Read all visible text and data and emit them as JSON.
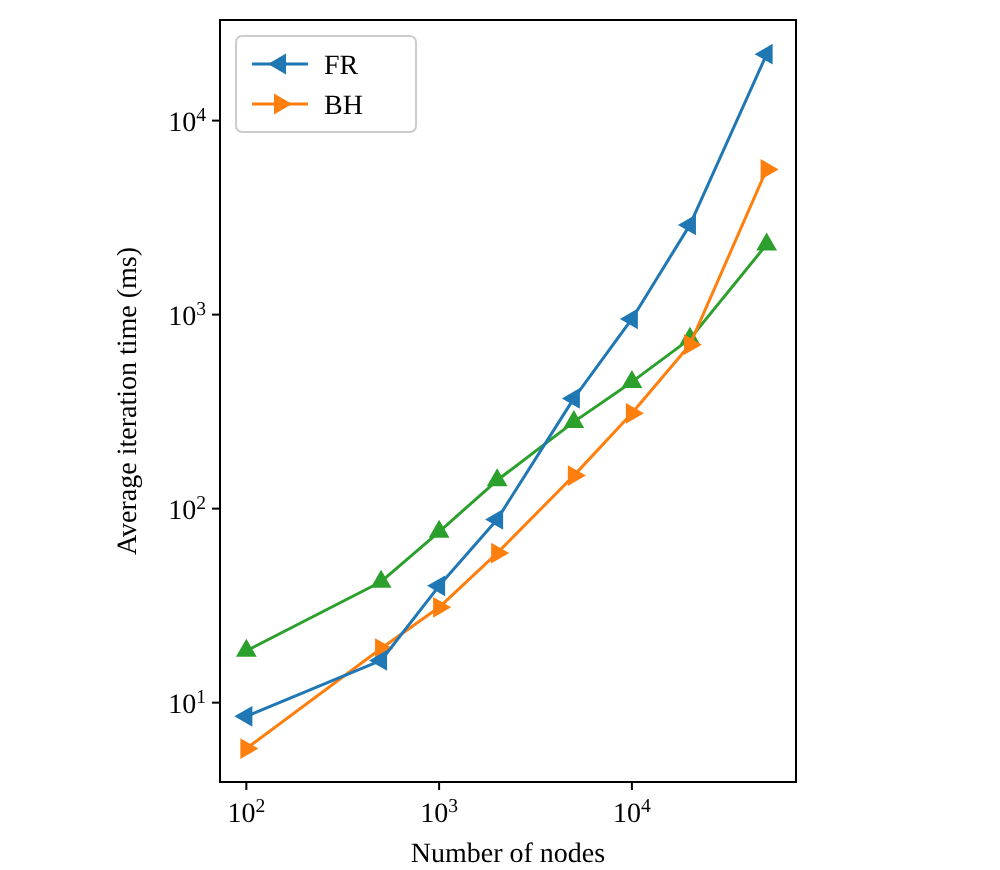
{
  "chart_data": {
    "type": "line",
    "xlabel": "Number of nodes",
    "ylabel": "Average iteration time (ms)",
    "log": "xy",
    "legend": "top left",
    "x": [
      100,
      500,
      1000,
      2000,
      5000,
      10000,
      20000,
      50000
    ],
    "xlim": [
      73,
      71000
    ],
    "ylim": [
      3.9,
      33000
    ],
    "xticks": [
      {
        "value": 100,
        "label": "10$^{2}$"
      },
      {
        "value": 1000,
        "label": "10$^{3}$"
      },
      {
        "value": 10000,
        "label": "10$^{4}$"
      }
    ],
    "yticks": [
      {
        "value": 10,
        "label": "10$^{1}$"
      },
      {
        "value": 100,
        "label": "10$^{2}$"
      },
      {
        "value": 1000,
        "label": "10$^{3}$"
      },
      {
        "value": 10000,
        "label": "10$^{4}$"
      }
    ],
    "series": [
      {
        "name": "FR",
        "color": "#1f77b4",
        "marker": "triangle-left",
        "values": [
          8.5,
          16.5,
          40,
          88,
          370,
          950,
          2900,
          22000
        ]
      },
      {
        "name": "BH",
        "color": "#ff7f0e",
        "marker": "triangle-right",
        "values": [
          5.8,
          19,
          31,
          59,
          148,
          310,
          700,
          5600
        ]
      },
      {
        "color": "#2ca02c",
        "marker": "triangle",
        "values": [
          18.5,
          42,
          76,
          140,
          280,
          450,
          750,
          2300
        ]
      }
    ]
  }
}
